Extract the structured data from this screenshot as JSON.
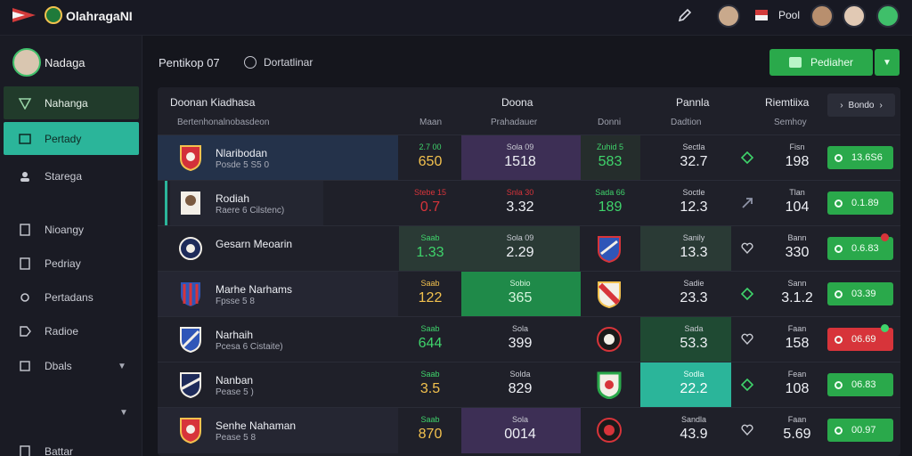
{
  "app": {
    "title": "OlahragaNI",
    "top_label": "Pool"
  },
  "colors": {
    "accent_green": "#2aa94b",
    "teal": "#2bb59a",
    "red": "#d7343a",
    "bg": "#15161d"
  },
  "icons": [
    "flag-icon",
    "logo-icon",
    "edit-icon",
    "avatar-icon",
    "help-icon",
    "crest-icon",
    "trend-icon",
    "heart-icon",
    "arrow-icon"
  ],
  "sidebar": {
    "user": "Nadaga",
    "items": [
      {
        "label": "Nahanga",
        "icon": "shield-icon"
      },
      {
        "label": "Pertady",
        "icon": "calendar-icon"
      },
      {
        "label": "Starega",
        "icon": "user-icon"
      },
      {
        "label": "Nioangy",
        "icon": "document-icon"
      },
      {
        "label": "Pedriay",
        "icon": "document-icon"
      },
      {
        "label": "Pertadans",
        "icon": "gear-icon"
      },
      {
        "label": "Radioe",
        "icon": "tag-icon"
      },
      {
        "label": "Dbals",
        "icon": "box-icon"
      },
      {
        "label": "Battar",
        "icon": "document-icon"
      }
    ]
  },
  "header": {
    "breadcrumb": "Pentikop 07",
    "help_label": "Dortatlinar",
    "primary_button": "Pediaher"
  },
  "table": {
    "columns": [
      {
        "title": "Doonan Kiadhasa",
        "sub": "Bertenhonalnobasdeon"
      },
      {
        "title": "",
        "sub": "Maan"
      },
      {
        "title": "Doona",
        "sub": "Prahadauer"
      },
      {
        "title": "",
        "sub": "Donni"
      },
      {
        "title": "Pannla",
        "sub": "Dadtion"
      },
      {
        "title": "Riemtiixa",
        "sub": "Semhoy"
      }
    ],
    "filter_button": "Bondo",
    "rows": [
      {
        "name": "Nlaribodan",
        "meta": "Posde 5 S5 0",
        "c1_label": "2.7 00",
        "c1": "650",
        "c2_label": "Sola 09",
        "c2": "1518",
        "c3_label": "Zuhid 5",
        "c3": "583",
        "c4_label": "Sectla",
        "c4": "32.7",
        "c5_label": "Fisn",
        "c5": "198",
        "odds": "13.6S6"
      },
      {
        "name": "Rodiah",
        "meta": "Raere 6 Cilstenc)",
        "c1_label": "Stebe 15",
        "c1": "0.7",
        "c2_label": "Snla 30",
        "c2": "3.32",
        "c3_label": "Sada 66",
        "c3": "189",
        "c4_label": "Soctle",
        "c4": "12.3",
        "c5_label": "Tlan",
        "c5": "104",
        "odds": "0.1.89"
      },
      {
        "name": "Gesarn Meoarin",
        "meta": "",
        "c1_label": "Saab",
        "c1": "1.33",
        "c2_label": "Sola 09",
        "c2": "2.29",
        "c3_label": "",
        "c3": "",
        "c4_label": "Sanily",
        "c4": "13.3",
        "c5_label": "Bann",
        "c5": "330",
        "odds": "0.6.83"
      },
      {
        "name": "Marhe Narhams",
        "meta": "Fpsse 5 8",
        "c1_label": "Saab",
        "c1": "122",
        "c2_label": "Sobio",
        "c2": "365",
        "c3_label": "",
        "c3": "",
        "c4_label": "Sadie",
        "c4": "23.3",
        "c5_label": "Sann",
        "c5": "3.1.2",
        "odds": "03.39"
      },
      {
        "name": "Narhaih",
        "meta": "Pcesa 6 Cistaite)",
        "c1_label": "Saab",
        "c1": "644",
        "c2_label": "Sola",
        "c2": "399",
        "c3_label": "",
        "c3": "",
        "c4_label": "Sada",
        "c4": "53.3",
        "c5_label": "Faan",
        "c5": "158",
        "odds": "06.69"
      },
      {
        "name": "Nanban",
        "meta": "Pease 5 )",
        "c1_label": "Saab",
        "c1": "3.5",
        "c2_label": "Solda",
        "c2": "829",
        "c3_label": "",
        "c3": "",
        "c4_label": "Sodla",
        "c4": "22.2",
        "c5_label": "Fean",
        "c5": "108",
        "odds": "06.83"
      },
      {
        "name": "Senhe Nahaman",
        "meta": "Pease 5 8",
        "c1_label": "Saab",
        "c1": "870",
        "c2_label": "Sola",
        "c2": "0014",
        "c3_label": "",
        "c3": "",
        "c4_label": "Sandla",
        "c4": "43.9",
        "c5_label": "Faan",
        "c5": "5.69",
        "odds": "00.97"
      }
    ]
  }
}
